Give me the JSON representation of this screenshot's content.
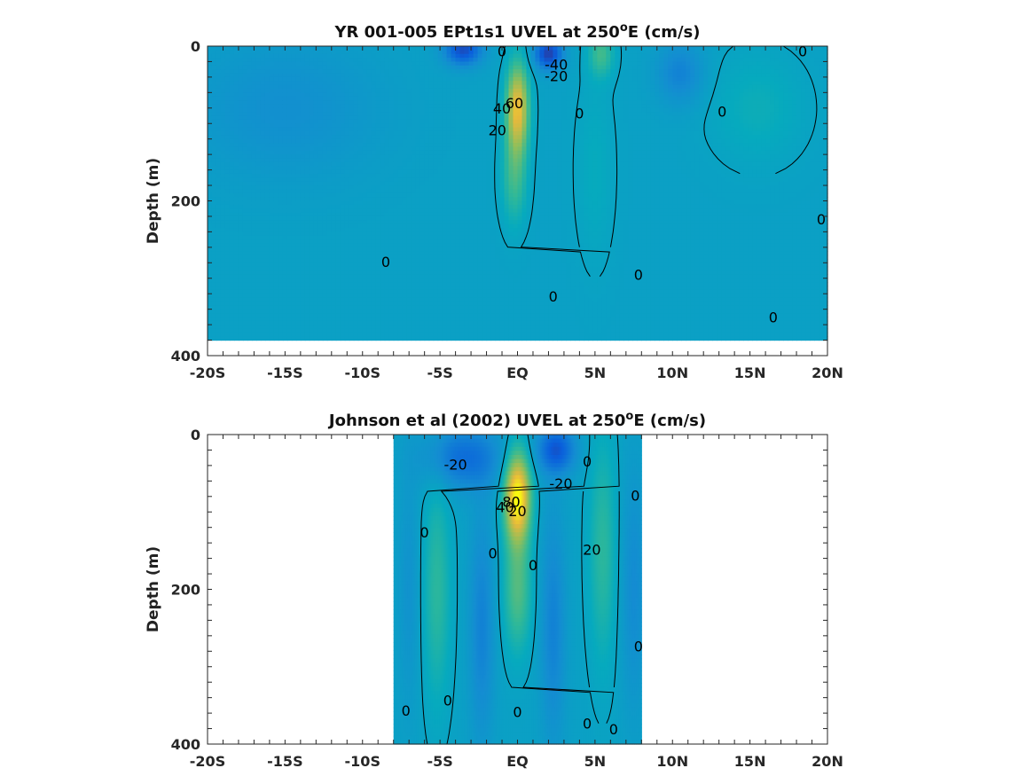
{
  "chart_data": [
    {
      "type": "heatmap",
      "title_main": "YR 001-005 EPt1s1 UVEL at 250",
      "title_sup": "o",
      "title_end": "E (cm/s)",
      "ylabel": "Depth (m)",
      "xlim": [
        -20,
        20
      ],
      "ylim": [
        0,
        400
      ],
      "x_ticks": [
        {
          "value": -20,
          "label": "-20S"
        },
        {
          "value": -15,
          "label": "-15S"
        },
        {
          "value": -10,
          "label": "-10S"
        },
        {
          "value": -5,
          "label": "-5S"
        },
        {
          "value": 0,
          "label": "EQ"
        },
        {
          "value": 5,
          "label": "5N"
        },
        {
          "value": 10,
          "label": "10N"
        },
        {
          "value": 15,
          "label": "15N"
        },
        {
          "value": 20,
          "label": "20N"
        }
      ],
      "y_ticks": [
        {
          "value": 0,
          "label": "0"
        },
        {
          "value": 200,
          "label": "200"
        },
        {
          "value": 400,
          "label": "400"
        }
      ],
      "data_extent": {
        "lat": [
          -20,
          20
        ],
        "depth": [
          0,
          380
        ]
      },
      "features": [
        {
          "lat": 0.0,
          "depth": 80,
          "value": 70,
          "dlat": 0.7,
          "ddepth": 55
        },
        {
          "lat": -0.2,
          "depth": 170,
          "value": 25,
          "dlat": 0.8,
          "ddepth": 60
        },
        {
          "lat": -3.5,
          "depth": 5,
          "value": -45,
          "dlat": 1.2,
          "ddepth": 20
        },
        {
          "lat": 2.0,
          "depth": 10,
          "value": -50,
          "dlat": 0.9,
          "ddepth": 20
        },
        {
          "lat": 5.4,
          "depth": 10,
          "value": 25,
          "dlat": 0.8,
          "ddepth": 30
        },
        {
          "lat": 10.5,
          "depth": 35,
          "value": -20,
          "dlat": 1.5,
          "ddepth": 40
        },
        {
          "lat": -15.0,
          "depth": 80,
          "value": -12,
          "dlat": 6.0,
          "ddepth": 90
        },
        {
          "lat": 5.0,
          "depth": 160,
          "value": 8,
          "dlat": 1.2,
          "ddepth": 120
        },
        {
          "lat": 15.5,
          "depth": 80,
          "value": 10,
          "dlat": 3.0,
          "ddepth": 70
        }
      ],
      "contour_labels": [
        {
          "lat": -1.0,
          "depth": 8,
          "text": "0"
        },
        {
          "lat": 2.5,
          "depth": 25,
          "text": "-40"
        },
        {
          "lat": 2.5,
          "depth": 40,
          "text": "-20"
        },
        {
          "lat": -0.2,
          "depth": 75,
          "text": "60"
        },
        {
          "lat": -1.0,
          "depth": 82,
          "text": "40"
        },
        {
          "lat": -1.3,
          "depth": 110,
          "text": "20"
        },
        {
          "lat": 4.0,
          "depth": 88,
          "text": "0"
        },
        {
          "lat": 13.2,
          "depth": 86,
          "text": "0"
        },
        {
          "lat": 18.4,
          "depth": 8,
          "text": "0"
        },
        {
          "lat": 19.6,
          "depth": 225,
          "text": "0"
        },
        {
          "lat": -8.5,
          "depth": 280,
          "text": "0"
        },
        {
          "lat": 2.3,
          "depth": 325,
          "text": "0"
        },
        {
          "lat": 7.8,
          "depth": 297,
          "text": "0"
        },
        {
          "lat": 16.5,
          "depth": 352,
          "text": "0"
        }
      ]
    },
    {
      "type": "heatmap",
      "title_main": "Johnson et al (2002) UVEL at 250",
      "title_sup": "o",
      "title_end": "E (cm/s)",
      "ylabel": "Depth (m)",
      "xlim": [
        -20,
        20
      ],
      "ylim": [
        0,
        400
      ],
      "x_ticks": [
        {
          "value": -20,
          "label": "-20S"
        },
        {
          "value": -15,
          "label": "-15S"
        },
        {
          "value": -10,
          "label": "-10S"
        },
        {
          "value": -5,
          "label": "-5S"
        },
        {
          "value": 0,
          "label": "EQ"
        },
        {
          "value": 5,
          "label": "5N"
        },
        {
          "value": 10,
          "label": "10N"
        },
        {
          "value": 15,
          "label": "15N"
        },
        {
          "value": 20,
          "label": "20N"
        }
      ],
      "y_ticks": [
        {
          "value": 0,
          "label": "0"
        },
        {
          "value": 200,
          "label": "200"
        },
        {
          "value": 400,
          "label": "400"
        }
      ],
      "data_extent": {
        "lat": [
          -8,
          8
        ],
        "depth": [
          0,
          400
        ]
      },
      "features": [
        {
          "lat": 0.0,
          "depth": 80,
          "value": 90,
          "dlat": 0.8,
          "ddepth": 55
        },
        {
          "lat": 0.0,
          "depth": 200,
          "value": 30,
          "dlat": 0.9,
          "ddepth": 80
        },
        {
          "lat": -5.2,
          "depth": 200,
          "value": 20,
          "dlat": 0.9,
          "ddepth": 150
        },
        {
          "lat": 5.5,
          "depth": 150,
          "value": 20,
          "dlat": 0.9,
          "ddepth": 150
        },
        {
          "lat": 2.5,
          "depth": 20,
          "value": -40,
          "dlat": 1.2,
          "ddepth": 30
        },
        {
          "lat": -3.5,
          "depth": 30,
          "value": -30,
          "dlat": 2.5,
          "ddepth": 40
        },
        {
          "lat": -2.3,
          "depth": 250,
          "value": -20,
          "dlat": 0.8,
          "ddepth": 150
        },
        {
          "lat": 2.3,
          "depth": 250,
          "value": -20,
          "dlat": 0.8,
          "ddepth": 150
        },
        {
          "lat": 7.5,
          "depth": 200,
          "value": -15,
          "dlat": 0.8,
          "ddepth": 150
        },
        {
          "lat": -7.0,
          "depth": 200,
          "value": -10,
          "dlat": 0.7,
          "ddepth": 150
        }
      ],
      "contour_labels": [
        {
          "lat": -4.0,
          "depth": 40,
          "text": "-20"
        },
        {
          "lat": 2.8,
          "depth": 65,
          "text": "-20"
        },
        {
          "lat": -0.8,
          "depth": 95,
          "text": "40"
        },
        {
          "lat": -0.4,
          "depth": 88,
          "text": "80"
        },
        {
          "lat": 0.0,
          "depth": 100,
          "text": "20"
        },
        {
          "lat": 4.5,
          "depth": 36,
          "text": "0"
        },
        {
          "lat": 7.6,
          "depth": 80,
          "text": "0"
        },
        {
          "lat": -6.0,
          "depth": 128,
          "text": "0"
        },
        {
          "lat": -1.6,
          "depth": 155,
          "text": "0"
        },
        {
          "lat": 1.0,
          "depth": 170,
          "text": "0"
        },
        {
          "lat": 4.8,
          "depth": 150,
          "text": "20"
        },
        {
          "lat": 7.8,
          "depth": 275,
          "text": "0"
        },
        {
          "lat": -7.2,
          "depth": 358,
          "text": "0"
        },
        {
          "lat": -4.5,
          "depth": 345,
          "text": "0"
        },
        {
          "lat": 0.0,
          "depth": 360,
          "text": "0"
        },
        {
          "lat": 4.5,
          "depth": 375,
          "text": "0"
        },
        {
          "lat": 6.2,
          "depth": 382,
          "text": "0"
        }
      ]
    }
  ]
}
